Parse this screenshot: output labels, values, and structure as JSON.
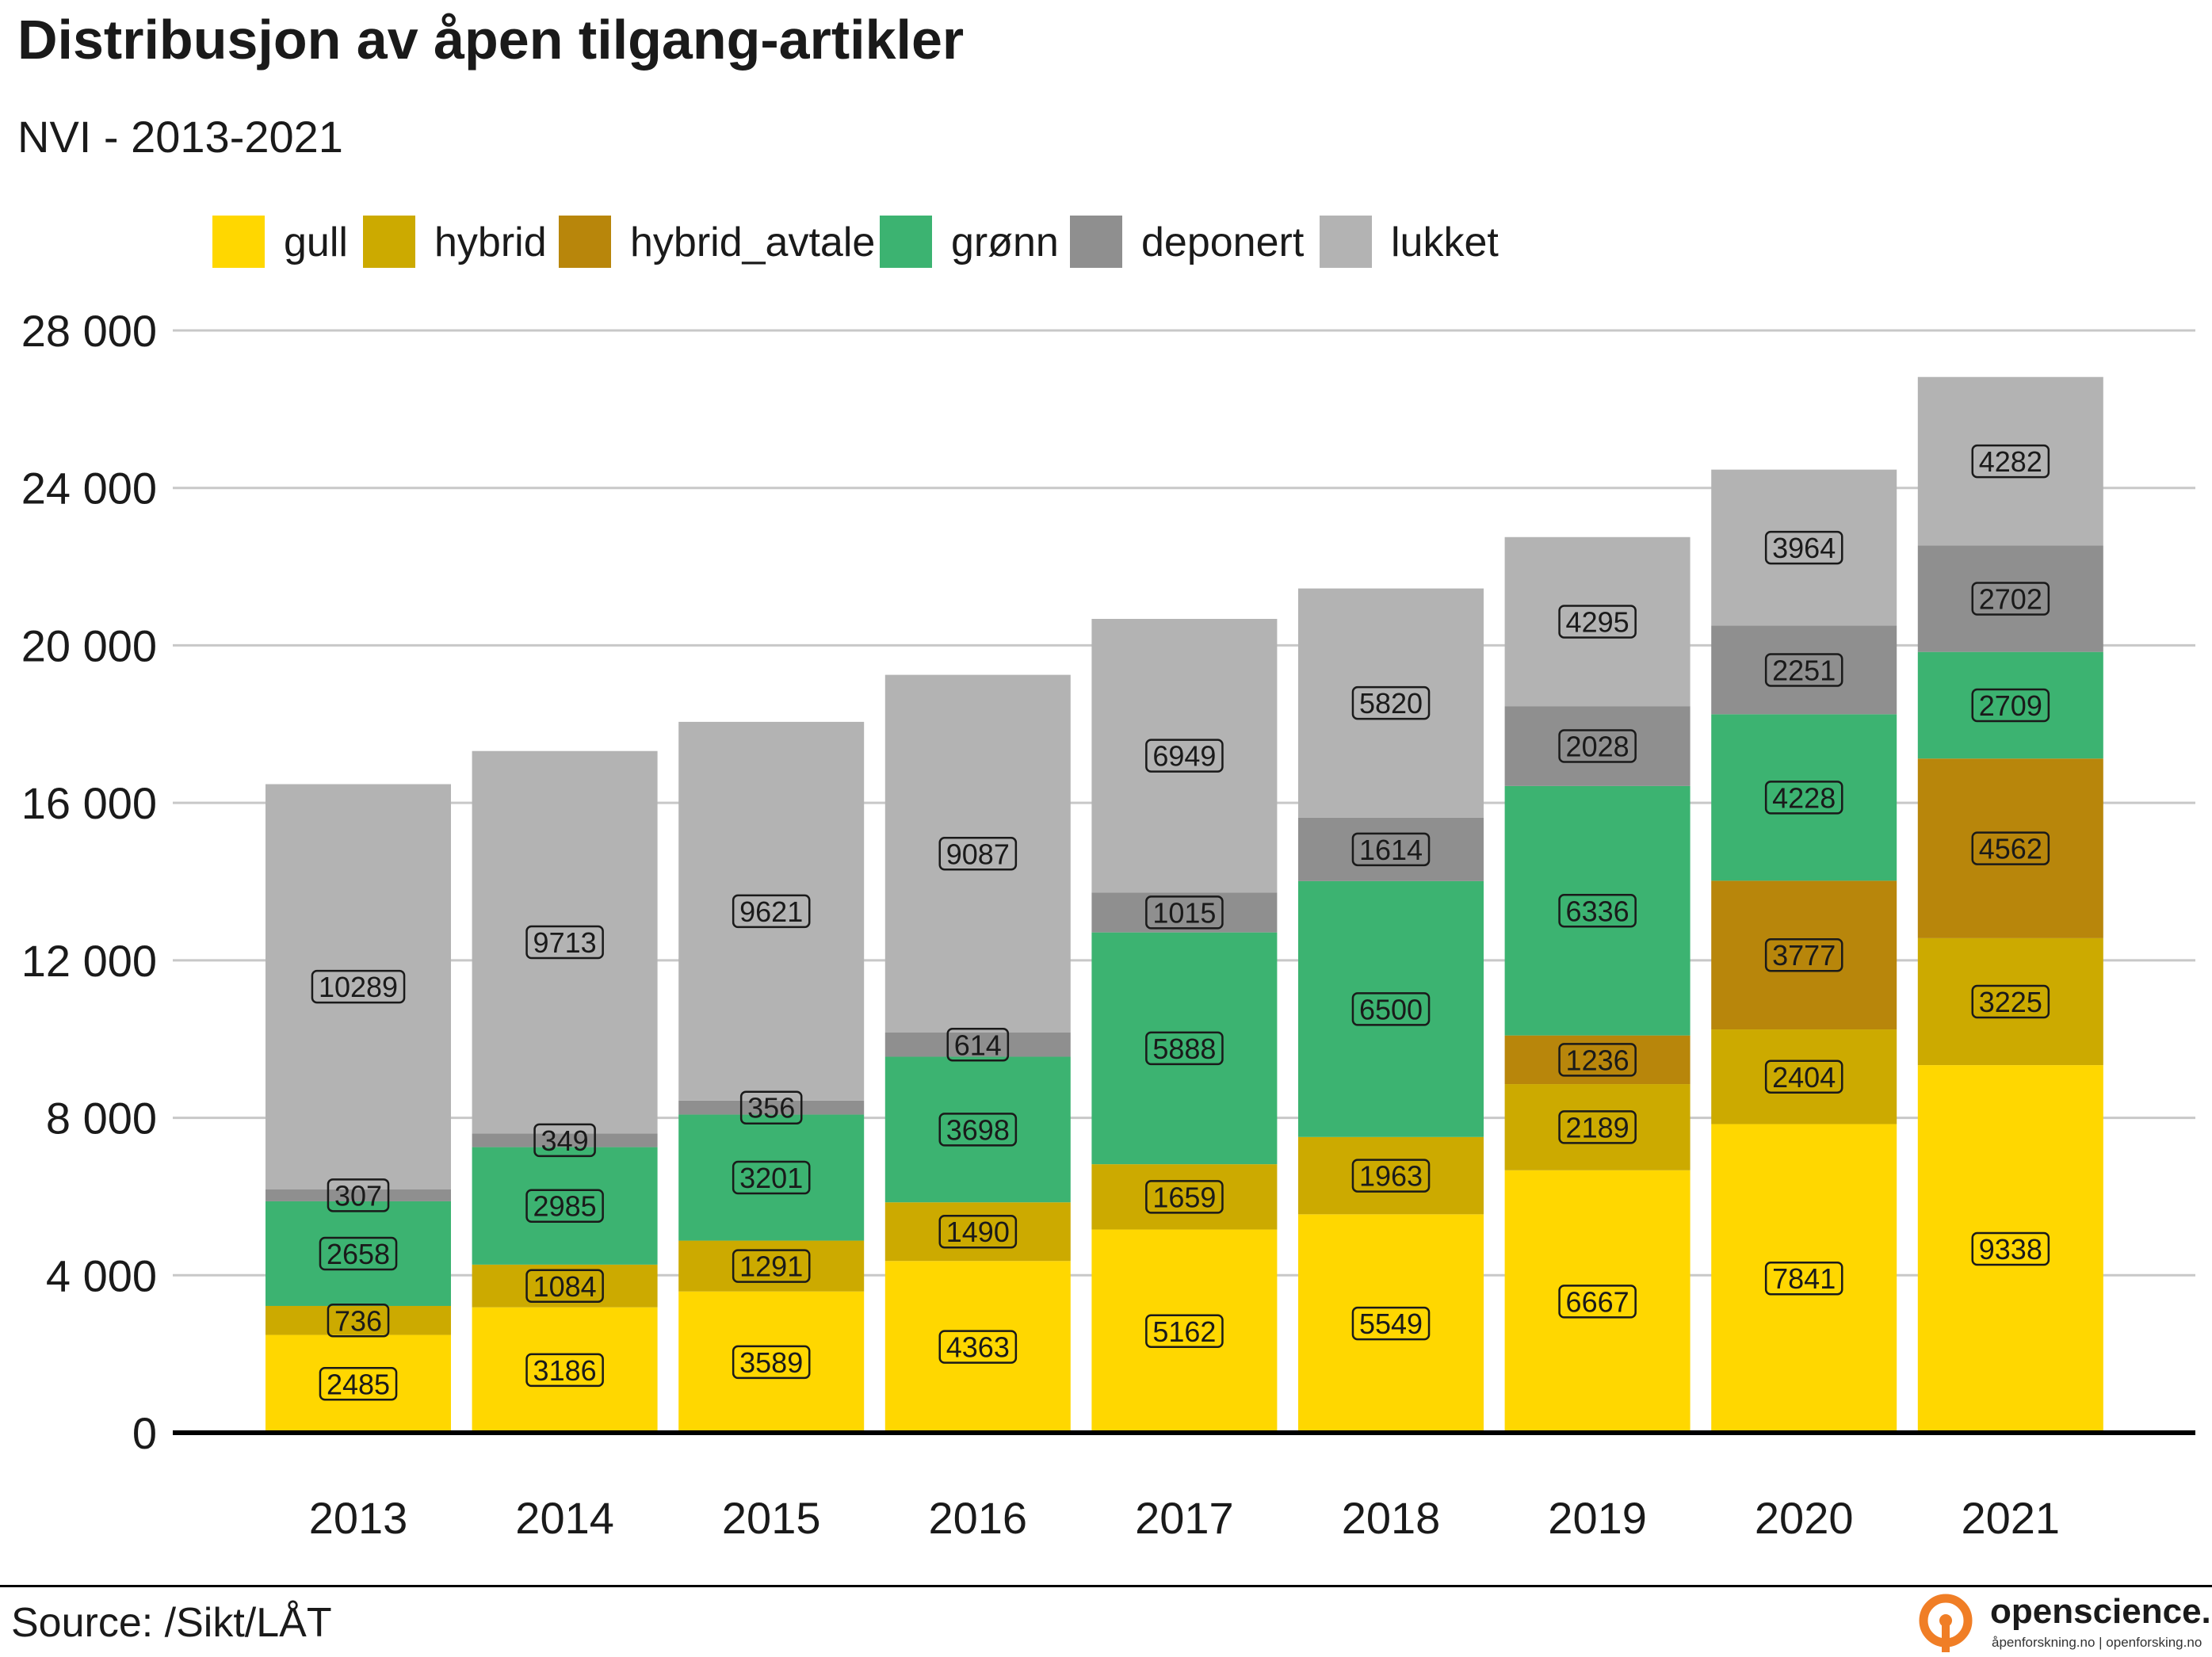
{
  "title": "Distribusjon av åpen tilgang-artikler",
  "subtitle": "NVI - 2013-2021",
  "source": "Source: /Sikt/LÅT",
  "logo": {
    "name": "openscience.no",
    "tagline": "åpenforskning.no | openforsking.no"
  },
  "colors": {
    "gull": "#FFD700",
    "hybrid": "#CCAA00",
    "hybrid_avtale": "#B8860B",
    "grønn": "#3CB371",
    "deponert": "#8F8F8F",
    "lukket": "#B3B3B3",
    "grid": "#C8C8C8",
    "logo": "#F07E26"
  },
  "chart_data": {
    "type": "bar",
    "stacked": true,
    "title": "Distribusjon av åpen tilgang-artikler",
    "subtitle": "NVI - 2013-2021",
    "categories": [
      "2013",
      "2014",
      "2015",
      "2016",
      "2017",
      "2018",
      "2019",
      "2020",
      "2021"
    ],
    "series": [
      {
        "name": "gull",
        "values": [
          2485,
          3186,
          3589,
          4363,
          5162,
          5549,
          6667,
          7841,
          9338
        ]
      },
      {
        "name": "hybrid",
        "values": [
          736,
          1084,
          1291,
          1490,
          1659,
          1963,
          2189,
          2404,
          3225
        ]
      },
      {
        "name": "hybrid_avtale",
        "values": [
          null,
          null,
          null,
          null,
          null,
          null,
          1236,
          3777,
          4562
        ]
      },
      {
        "name": "grønn",
        "values": [
          2658,
          2985,
          3201,
          3698,
          5888,
          6500,
          6336,
          4228,
          2709
        ]
      },
      {
        "name": "deponert",
        "values": [
          307,
          349,
          356,
          614,
          1015,
          1614,
          2028,
          2251,
          2702
        ]
      },
      {
        "name": "lukket",
        "values": [
          10289,
          9713,
          9621,
          9087,
          6949,
          5820,
          4295,
          3964,
          4282
        ]
      }
    ],
    "ylim": [
      0,
      28000
    ],
    "yticks": [
      0,
      4000,
      8000,
      12000,
      16000,
      20000,
      24000,
      28000
    ],
    "ytick_labels": [
      "0",
      "4 000",
      "8 000",
      "12 000",
      "16 000",
      "20 000",
      "24 000",
      "28 000"
    ],
    "xlabel": "",
    "ylabel": "",
    "grid": "horizontal",
    "legend_position": "top-left"
  }
}
